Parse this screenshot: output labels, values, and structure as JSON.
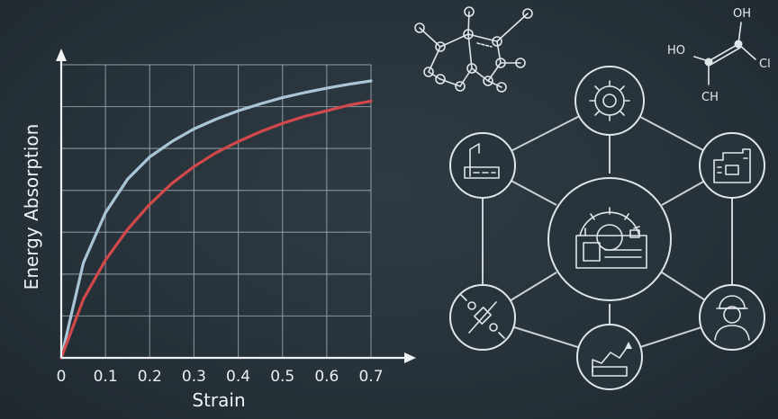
{
  "chart_data": {
    "type": "line",
    "xlabel": "Strain",
    "ylabel": "Energy Absorption",
    "xlim": [
      0,
      0.7
    ],
    "x_ticks": [
      "0",
      "0.1",
      "0.2",
      "0.3",
      "0.4",
      "0.5",
      "0.6",
      "0.7"
    ],
    "grid": true,
    "series": [
      {
        "color": "#a9c6d6",
        "x": [
          0,
          0.05,
          0.1,
          0.15,
          0.2,
          0.25,
          0.3,
          0.35,
          0.4,
          0.45,
          0.5,
          0.55,
          0.6,
          0.65,
          0.7
        ],
        "y": [
          0,
          3.4,
          5.2,
          6.4,
          7.2,
          7.75,
          8.2,
          8.55,
          8.85,
          9.1,
          9.32,
          9.5,
          9.66,
          9.8,
          9.92
        ]
      },
      {
        "color": "#d2484b",
        "x": [
          0,
          0.05,
          0.1,
          0.15,
          0.2,
          0.25,
          0.3,
          0.35,
          0.4,
          0.45,
          0.5,
          0.55,
          0.6,
          0.65,
          0.7
        ],
        "y": [
          0,
          2.1,
          3.5,
          4.6,
          5.5,
          6.25,
          6.85,
          7.35,
          7.75,
          8.1,
          8.4,
          8.65,
          8.85,
          9.05,
          9.2
        ]
      }
    ]
  },
  "chemistry": {
    "labels": [
      "OH",
      "HO",
      "Cl",
      "CH"
    ]
  },
  "hub": {
    "center_icon": "factory-gear-icon",
    "nodes": [
      "gear-icon",
      "industrial-plant-icon",
      "engineer-icon",
      "chart-growth-icon",
      "satellite-icon",
      "lab-equipment-icon"
    ]
  }
}
